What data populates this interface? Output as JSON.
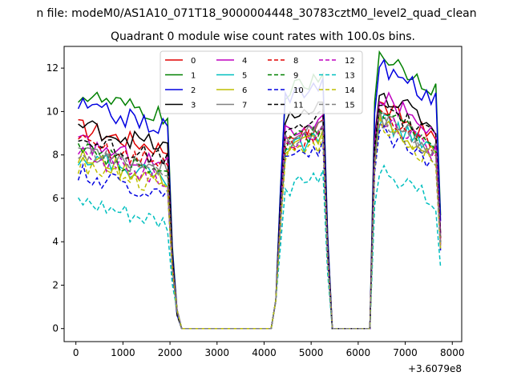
{
  "chart_data": {
    "type": "line",
    "suptitle": "n file: modeM0/AS1A10_071T18_9000004448_30783cztM0_level2_quad_clean",
    "title": "Quadrant 0 module wise count rates with 100.0s bins.",
    "xlabel": "",
    "ylabel": "",
    "x_offset_label": "+3.6079e8",
    "xlim": [
      -250,
      8200
    ],
    "ylim": [
      -0.6,
      13
    ],
    "xticks": [
      0,
      1000,
      2000,
      3000,
      4000,
      5000,
      6000,
      7000,
      8000
    ],
    "yticks": [
      0,
      2,
      4,
      6,
      8,
      10,
      12
    ],
    "x": [
      50,
      150,
      250,
      350,
      450,
      550,
      650,
      750,
      850,
      950,
      1050,
      1150,
      1250,
      1350,
      1450,
      1550,
      1650,
      1750,
      1850,
      1950,
      2050,
      2150,
      2250,
      2350,
      2450,
      2550,
      2650,
      2750,
      2850,
      2950,
      3050,
      3150,
      3250,
      3350,
      3450,
      3550,
      3650,
      3750,
      3850,
      3950,
      4050,
      4150,
      4250,
      4350,
      4450,
      4550,
      4650,
      4750,
      4850,
      4950,
      5050,
      5150,
      5250,
      5350,
      5450,
      5550,
      5650,
      5750,
      5850,
      5950,
      6050,
      6150,
      6250,
      6350,
      6450,
      6550,
      6650,
      6750,
      6850,
      6950,
      7050,
      7150,
      7250,
      7350,
      7450,
      7550,
      7650,
      7750
    ],
    "series": [
      {
        "name": "0",
        "color": "#e00000",
        "dash": "solid",
        "a": 9.3,
        "b": 8.8,
        "c": 9.2
      },
      {
        "name": "1",
        "color": "#008000",
        "dash": "solid",
        "a": 10.8,
        "b": 10.9,
        "c": 11.6
      },
      {
        "name": "2",
        "color": "#0000e0",
        "dash": "solid",
        "a": 10.3,
        "b": 10.7,
        "c": 11.0
      },
      {
        "name": "3",
        "color": "#000000",
        "dash": "solid",
        "a": 9.4,
        "b": 9.6,
        "c": 9.8
      },
      {
        "name": "4",
        "color": "#bf00bf",
        "dash": "solid",
        "a": 8.6,
        "b": 9.0,
        "c": 9.6
      },
      {
        "name": "5",
        "color": "#00bfbf",
        "dash": "solid",
        "a": 8.0,
        "b": 8.2,
        "c": 8.6
      },
      {
        "name": "6",
        "color": "#bfbf00",
        "dash": "solid",
        "a": 7.9,
        "b": 8.3,
        "c": 8.4
      },
      {
        "name": "7",
        "color": "#808080",
        "dash": "solid",
        "a": 8.4,
        "b": 8.7,
        "c": 8.7
      },
      {
        "name": "8",
        "color": "#e00000",
        "dash": "dashed",
        "a": 8.6,
        "b": 8.4,
        "c": 8.8
      },
      {
        "name": "9",
        "color": "#008000",
        "dash": "dashed",
        "a": 8.2,
        "b": 8.5,
        "c": 8.9
      },
      {
        "name": "10",
        "color": "#0000e0",
        "dash": "dashed",
        "a": 7.2,
        "b": 7.8,
        "c": 8.0
      },
      {
        "name": "11",
        "color": "#000000",
        "dash": "dashed",
        "a": 8.8,
        "b": 9.2,
        "c": 9.3
      },
      {
        "name": "12",
        "color": "#bf00bf",
        "dash": "dashed",
        "a": 8.0,
        "b": 8.5,
        "c": 8.6
      },
      {
        "name": "13",
        "color": "#00bfbf",
        "dash": "dashed",
        "a": 5.8,
        "b": 6.4,
        "c": 6.3
      },
      {
        "name": "14",
        "color": "#bfbf00",
        "dash": "dashed",
        "a": 7.6,
        "b": 8.0,
        "c": 8.2
      },
      {
        "name": "15",
        "color": "#808080",
        "dash": "dashed",
        "a": 8.1,
        "b": 8.4,
        "c": 8.5
      }
    ],
    "extra_series": [
      {
        "name": "",
        "color": "#90c890",
        "note": "unlabeled light green line rising to ~11.3 during second exposure"
      },
      {
        "name": "",
        "color": "#8888ee",
        "note": "unlabeled light blue line rising to ~11.5 during second exposure"
      }
    ],
    "legend_position": "top-center",
    "legend_columns": 4,
    "grid": false
  }
}
